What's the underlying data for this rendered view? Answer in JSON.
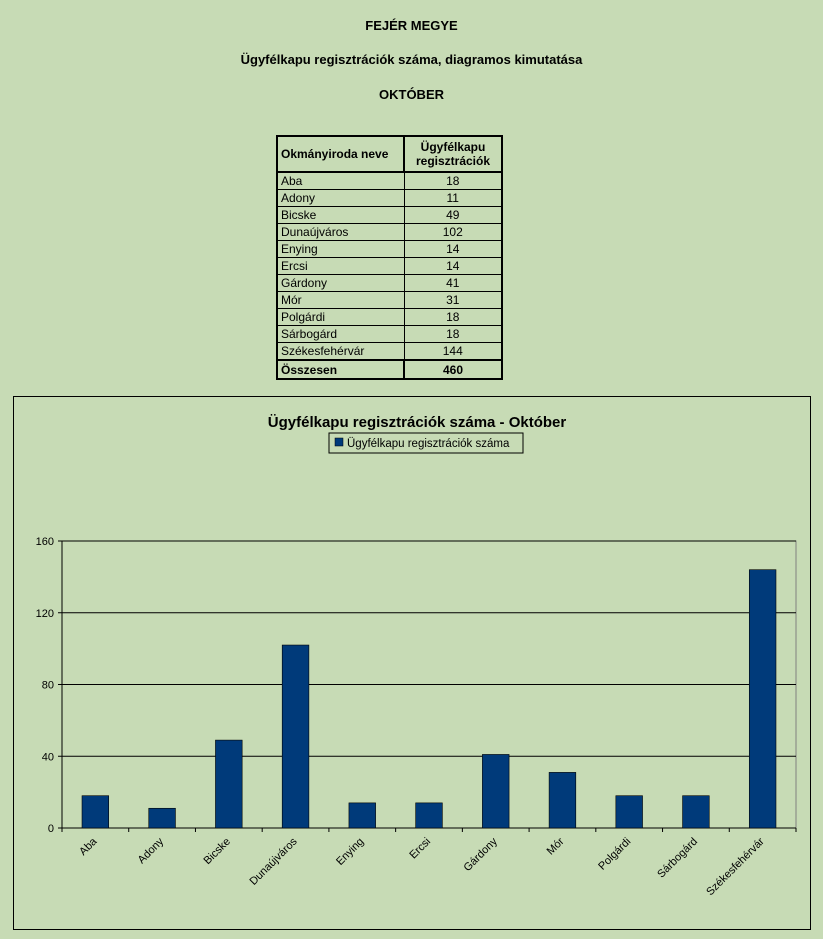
{
  "header": {
    "county": "FEJÉR MEGYE",
    "subtitle": "Ügyfélkapu regisztrációk száma, diagramos kimutatása",
    "month": "OKTÓBER"
  },
  "table": {
    "col1": "Okmányiroda neve",
    "col2_line1": "Ügyfélkapu",
    "col2_line2": "regisztrációk",
    "rows": [
      {
        "name": "Aba",
        "value": "18"
      },
      {
        "name": "Adony",
        "value": "11"
      },
      {
        "name": "Bicske",
        "value": "49"
      },
      {
        "name": "Dunaújváros",
        "value": "102"
      },
      {
        "name": "Enying",
        "value": "14"
      },
      {
        "name": "Ercsi",
        "value": "14"
      },
      {
        "name": "Gárdony",
        "value": "41"
      },
      {
        "name": "Mór",
        "value": "31"
      },
      {
        "name": "Polgárdi",
        "value": "18"
      },
      {
        "name": "Sárbogárd",
        "value": "18"
      },
      {
        "name": "Székesfehérvár",
        "value": "144"
      }
    ],
    "total_label": "Összesen",
    "total_value": "460"
  },
  "chart_data": {
    "type": "bar",
    "title": "Ügyfélkapu regisztrációk száma - Október",
    "categories": [
      "Aba",
      "Adony",
      "Bicske",
      "Dunaújváros",
      "Enying",
      "Ercsi",
      "Gárdony",
      "Mór",
      "Polgárdi",
      "Sárbogárd",
      "Székesfehérvár"
    ],
    "series": [
      {
        "name": "Ügyfélkapu regisztrációk száma",
        "values": [
          18,
          11,
          49,
          102,
          14,
          14,
          41,
          31,
          18,
          18,
          144
        ]
      }
    ],
    "ylim": [
      0,
      160
    ],
    "yticks": [
      0,
      40,
      80,
      120,
      160
    ],
    "grid": true,
    "legend": "top-center",
    "colors": {
      "bar": "#003a7a",
      "background": "#c7dbb5"
    }
  }
}
